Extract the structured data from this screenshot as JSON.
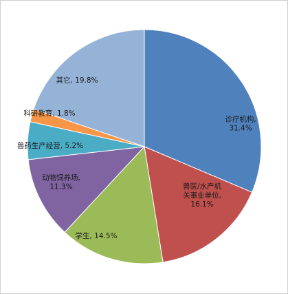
{
  "chart_data": {
    "type": "pie",
    "title": "",
    "unit": "%",
    "slices": [
      {
        "label": "诊疗机构",
        "value": 31.4,
        "value_text": "31.4%",
        "color": "#4f81bd"
      },
      {
        "label": "兽医/水产机关事业单位",
        "value": 16.1,
        "value_text": "16.1%",
        "color": "#c0504d"
      },
      {
        "label": "学生",
        "value": 14.5,
        "value_text": "14.5%",
        "color": "#9bbb59"
      },
      {
        "label": "动物饲养场",
        "value": 11.3,
        "value_text": "11.3%",
        "color": "#8064a2"
      },
      {
        "label": "兽药生产经营",
        "value": 5.2,
        "value_text": "5.2%",
        "color": "#4bacc6"
      },
      {
        "label": "科研教育",
        "value": 1.8,
        "value_text": "1.8%",
        "color": "#f79646"
      },
      {
        "label": "其它",
        "value": 19.8,
        "value_text": "19.8%",
        "color": "#95b3d7"
      }
    ],
    "label_lines": [
      [
        {
          "text": "诊疗机构,"
        },
        {
          "text": "31.4%"
        }
      ],
      [
        {
          "text": "兽医/水产机"
        },
        {
          "text": "关事业单位,"
        },
        {
          "text": "16.1%"
        }
      ],
      [
        {
          "text": "学生, 14.5%"
        }
      ],
      [
        {
          "text": "动物饲养场,"
        },
        {
          "text": "11.3%"
        }
      ],
      [
        {
          "text": "兽药生产经营, 5.2%"
        }
      ],
      [
        {
          "text": "科研教育, 1.8%"
        }
      ],
      [
        {
          "text": "其它, 19.8%"
        }
      ]
    ]
  }
}
